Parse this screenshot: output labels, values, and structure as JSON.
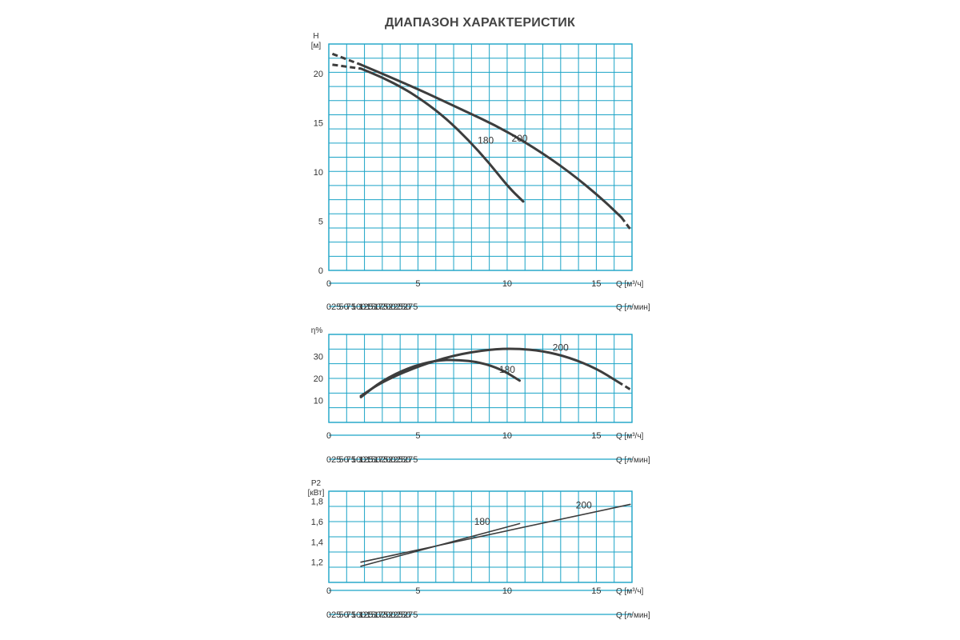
{
  "page": {
    "title": "ДИАПАЗОН ХАРАКТЕРИСТИК"
  },
  "colors": {
    "grid": "#1aa3c6",
    "curve": "#3d3d3d",
    "text": "#333333"
  },
  "chart_data": [
    {
      "type": "line",
      "ylabel": "H",
      "yunit": "[м]",
      "xlabel": "Q [м³/ч]",
      "xlabel2": "Q [л/мин]",
      "xlim": [
        0,
        17
      ],
      "ylim": [
        0,
        23
      ],
      "yticks": [
        0,
        5,
        10,
        15,
        20
      ],
      "ytick_labels": [
        "0",
        "5",
        "10",
        "15",
        "20"
      ],
      "xticks": [
        0,
        5,
        10,
        15
      ],
      "xticks2": [
        0,
        25,
        50,
        75,
        100,
        125,
        150,
        175,
        200,
        225,
        250,
        275
      ],
      "grid": true,
      "series": [
        {
          "name": "180",
          "dashed_points": [
            [
              0.2,
              20.9
            ],
            [
              1.8,
              20.5
            ]
          ],
          "points": [
            [
              1.8,
              20.5
            ],
            [
              3,
              19.6
            ],
            [
              4.2,
              18.5
            ],
            [
              5.4,
              17.1
            ],
            [
              6.6,
              15.4
            ],
            [
              7.8,
              13.3
            ],
            [
              9,
              10.9
            ],
            [
              10.1,
              8.4
            ],
            [
              10.9,
              7.0
            ]
          ],
          "label_at": [
            8.8,
            13.2
          ]
        },
        {
          "name": "200",
          "dashed_points": [
            [
              0.2,
              22.0
            ],
            [
              1.8,
              20.9
            ]
          ],
          "points": [
            [
              1.8,
              20.9
            ],
            [
              3.5,
              19.6
            ],
            [
              5.5,
              18.0
            ],
            [
              7.5,
              16.3
            ],
            [
              9.5,
              14.6
            ],
            [
              11.5,
              12.5
            ],
            [
              13.5,
              10.0
            ],
            [
              15.3,
              7.3
            ],
            [
              16.4,
              5.4
            ]
          ],
          "dashed_tail": [
            [
              16.4,
              5.4
            ],
            [
              16.9,
              4.2
            ]
          ],
          "label_at": [
            10.7,
            13.4
          ]
        }
      ]
    },
    {
      "type": "line",
      "ylabel": "η%",
      "xlabel": "Q [м³/ч]",
      "xlabel2": "Q [л/мин]",
      "xlim": [
        0,
        17
      ],
      "ylim": [
        0,
        40
      ],
      "yticks": [
        10,
        20,
        30
      ],
      "ytick_labels": [
        "10",
        "20",
        "30"
      ],
      "xticks": [
        0,
        5,
        10,
        15
      ],
      "xticks2": [
        0,
        25,
        50,
        75,
        100,
        125,
        150,
        175,
        200,
        225,
        250,
        275
      ],
      "grid": true,
      "series": [
        {
          "name": "180",
          "points": [
            [
              1.8,
              11.5
            ],
            [
              3,
              19.0
            ],
            [
              4.5,
              25.0
            ],
            [
              6,
              28.2
            ],
            [
              7.2,
              28.5
            ],
            [
              8.5,
              27.3
            ],
            [
              9.7,
              24.0
            ],
            [
              10.7,
              19.0
            ]
          ],
          "label_at": [
            10.0,
            24.0
          ]
        },
        {
          "name": "200",
          "points": [
            [
              1.8,
              12.0
            ],
            [
              3,
              18.5
            ],
            [
              5,
              25.5
            ],
            [
              7,
              30.5
            ],
            [
              9,
              33.2
            ],
            [
              10.5,
              33.6
            ],
            [
              12,
              32.5
            ],
            [
              13.5,
              29.5
            ],
            [
              15,
              24.5
            ],
            [
              16.2,
              18.5
            ]
          ],
          "dashed_tail": [
            [
              16.2,
              18.5
            ],
            [
              16.9,
              15.0
            ]
          ],
          "label_at": [
            13.0,
            34.0
          ]
        }
      ]
    },
    {
      "type": "line",
      "ylabel": "P2",
      "yunit": "[кВт]",
      "xlabel": "Q [м³/ч]",
      "xlabel2": "Q [л/мин]",
      "xlim": [
        0,
        17
      ],
      "ylim": [
        1.0,
        1.9
      ],
      "yticks": [
        1.2,
        1.4,
        1.6,
        1.8
      ],
      "ytick_labels": [
        "1,2",
        "1,4",
        "1,6",
        "1,8"
      ],
      "xticks": [
        0,
        5,
        10,
        15
      ],
      "xticks2": [
        0,
        25,
        50,
        75,
        100,
        125,
        150,
        175,
        200,
        225,
        250,
        275
      ],
      "grid": true,
      "series": [
        {
          "name": "180",
          "points": [
            [
              1.8,
              1.16
            ],
            [
              10.7,
              1.58
            ]
          ],
          "label_at": [
            8.6,
            1.6
          ]
        },
        {
          "name": "200",
          "points": [
            [
              1.8,
              1.2
            ],
            [
              16.9,
              1.77
            ]
          ],
          "label_at": [
            14.3,
            1.76
          ]
        }
      ]
    }
  ]
}
